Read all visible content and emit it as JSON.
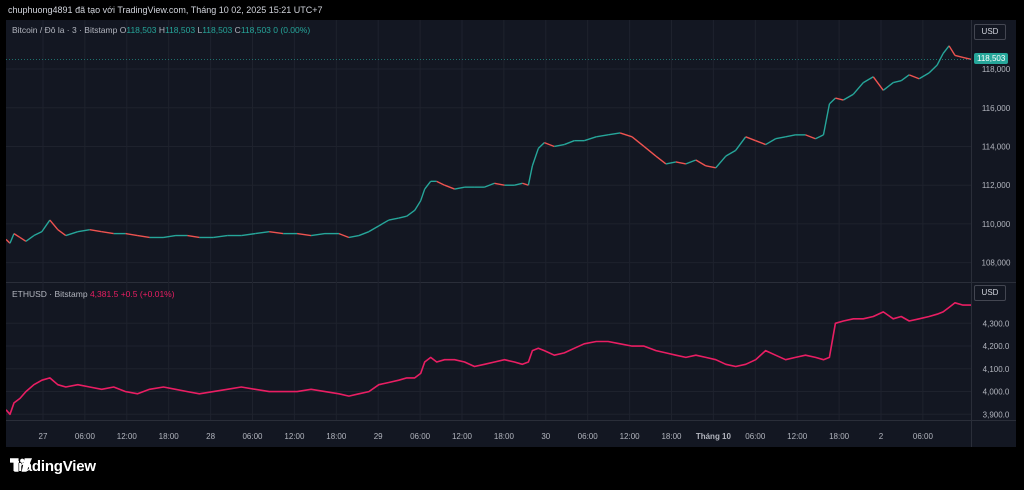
{
  "header": {
    "text": "chuphuong4891 đã tạo với TradingView.com, Tháng 10 02, 2025 15:21 UTC+7"
  },
  "top": {
    "symbol": "Bitcoin / Đô la · 3 · Bitstamp",
    "o_label": "O",
    "o": "118,503",
    "h_label": "H",
    "h": "118,503",
    "l_label": "L",
    "l": "118,503",
    "c_label": "C",
    "c": "118,503",
    "change": "0 (0.00%)",
    "currency": "USD",
    "last_price": "118,503",
    "up_color": "#26a69a",
    "down_color": "#ef5350"
  },
  "bottom": {
    "symbol": "ETHUSD · Bitstamp",
    "last": "4,381.5",
    "change": "+0.5 (+0.01%)",
    "currency": "USD",
    "line_color": "#e91e63"
  },
  "x_labels": [
    "27",
    "06:00",
    "12:00",
    "18:00",
    "28",
    "06:00",
    "12:00",
    "18:00",
    "29",
    "06:00",
    "12:00",
    "18:00",
    "30",
    "06:00",
    "12:00",
    "18:00",
    "Tháng 10",
    "06:00",
    "12:00",
    "18:00",
    "2",
    "06:00"
  ],
  "footer": {
    "brand": "TradingView"
  },
  "chart_data": [
    {
      "type": "line",
      "title": "Bitcoin / Đô la · 3 · Bitstamp",
      "ylim": [
        107000,
        119500
      ],
      "y_ticks": [
        108000,
        110000,
        112000,
        114000,
        116000,
        118000
      ],
      "y_tick_labels": [
        "108,000",
        "110,000",
        "112,000",
        "114,000",
        "116,000",
        "118,000"
      ],
      "x": [
        0,
        4,
        8,
        14,
        20,
        28,
        36,
        44,
        52,
        60,
        72,
        84,
        96,
        108,
        120,
        132,
        144,
        158,
        170,
        182,
        194,
        208,
        222,
        236,
        250,
        264,
        278,
        292,
        306,
        320,
        334,
        344,
        354,
        364,
        374,
        384,
        394,
        402,
        410,
        416,
        420,
        426,
        432,
        440,
        450,
        460,
        470,
        480,
        490,
        500,
        510,
        518,
        524,
        528,
        534,
        540,
        550,
        560,
        570,
        580,
        592,
        604,
        616,
        628,
        640,
        652,
        662,
        672,
        682,
        692,
        702,
        712,
        722,
        732,
        742,
        752,
        762,
        772,
        782,
        792,
        802,
        812,
        820,
        826,
        832,
        840,
        850,
        860,
        870,
        880,
        890,
        898,
        906,
        916,
        926,
        934,
        940,
        946,
        952,
        960,
        968
      ],
      "series": [
        {
          "values": [
            109200,
            109000,
            109500,
            109300,
            109100,
            109400,
            109600,
            110200,
            109700,
            109400,
            109600,
            109700,
            109600,
            109500,
            109500,
            109400,
            109300,
            109300,
            109400,
            109400,
            109300,
            109300,
            109400,
            109400,
            109500,
            109600,
            109500,
            109500,
            109400,
            109500,
            109500,
            109300,
            109400,
            109600,
            109900,
            110200,
            110300,
            110400,
            110700,
            111200,
            111800,
            112200,
            112200,
            112000,
            111800,
            111900,
            111900,
            111900,
            112100,
            112000,
            112000,
            112100,
            112000,
            113000,
            113900,
            114200,
            114000,
            114100,
            114300,
            114300,
            114500,
            114600,
            114700,
            114500,
            114000,
            113500,
            113100,
            113200,
            113100,
            113300,
            113000,
            112900,
            113500,
            113800,
            114500,
            114300,
            114100,
            114400,
            114500,
            114600,
            114600,
            114400,
            114600,
            116200,
            116500,
            116400,
            116700,
            117300,
            117600,
            116900,
            117300,
            117400,
            117700,
            117500,
            117800,
            118200,
            118800,
            119200,
            118700,
            118600,
            118500
          ]
        }
      ]
    },
    {
      "type": "line",
      "title": "ETHUSD · Bitstamp",
      "ylim": [
        3875,
        4420
      ],
      "y_ticks": [
        3900,
        4000,
        4100,
        4200,
        4300
      ],
      "y_tick_labels": [
        "3,900.0",
        "4,000.0",
        "4,100.0",
        "4,200.0",
        "4,300.0"
      ],
      "x": [
        0,
        4,
        8,
        14,
        20,
        28,
        36,
        44,
        52,
        60,
        72,
        84,
        96,
        108,
        120,
        132,
        144,
        158,
        170,
        182,
        194,
        208,
        222,
        236,
        250,
        264,
        278,
        292,
        306,
        320,
        334,
        344,
        354,
        364,
        374,
        384,
        394,
        402,
        410,
        416,
        420,
        426,
        432,
        440,
        450,
        460,
        470,
        480,
        490,
        500,
        510,
        518,
        524,
        528,
        534,
        540,
        550,
        560,
        570,
        580,
        592,
        604,
        616,
        628,
        640,
        652,
        662,
        672,
        682,
        692,
        702,
        712,
        722,
        732,
        742,
        752,
        762,
        772,
        782,
        792,
        802,
        812,
        820,
        826,
        832,
        840,
        850,
        860,
        870,
        880,
        890,
        898,
        906,
        916,
        926,
        934,
        940,
        946,
        952,
        960,
        968
      ],
      "series": [
        {
          "values": [
            3920,
            3900,
            3950,
            3970,
            4000,
            4030,
            4050,
            4060,
            4030,
            4020,
            4030,
            4020,
            4010,
            4020,
            4000,
            3990,
            4010,
            4020,
            4010,
            4000,
            3990,
            4000,
            4010,
            4020,
            4010,
            4000,
            4000,
            4000,
            4010,
            4000,
            3990,
            3980,
            3990,
            4000,
            4030,
            4040,
            4050,
            4060,
            4060,
            4080,
            4130,
            4150,
            4130,
            4140,
            4140,
            4130,
            4110,
            4120,
            4130,
            4140,
            4130,
            4120,
            4130,
            4180,
            4190,
            4180,
            4160,
            4170,
            4190,
            4210,
            4220,
            4220,
            4210,
            4200,
            4200,
            4180,
            4170,
            4160,
            4150,
            4160,
            4150,
            4140,
            4120,
            4110,
            4120,
            4140,
            4180,
            4160,
            4140,
            4150,
            4160,
            4150,
            4140,
            4150,
            4300,
            4310,
            4320,
            4320,
            4330,
            4350,
            4320,
            4330,
            4310,
            4320,
            4330,
            4340,
            4350,
            4370,
            4390,
            4380,
            4380
          ]
        }
      ]
    }
  ]
}
